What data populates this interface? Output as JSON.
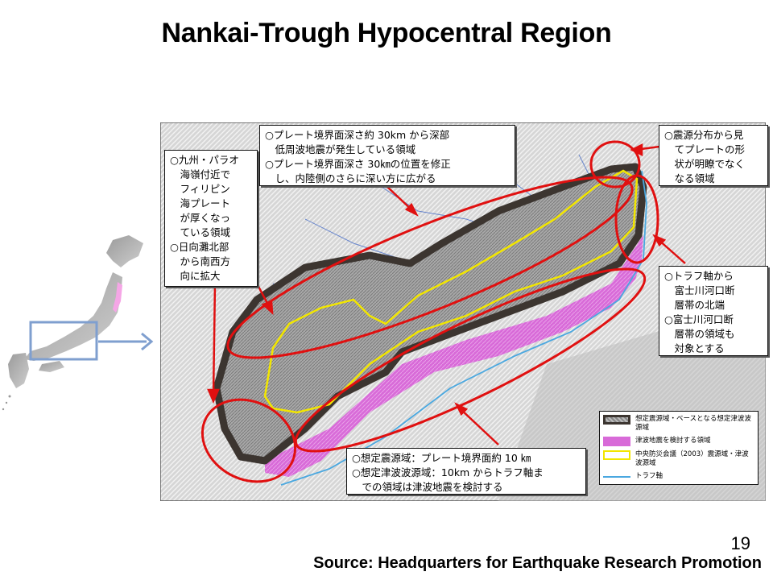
{
  "title": "Nankai-Trough Hypocentral Region",
  "page_number": "19",
  "source": "Source: Headquarters for Earthquake Research Promotion",
  "colors": {
    "outline_region": "#3c3530",
    "tsunami_region": "#d86ad8",
    "cdmc_2003": "#f2e600",
    "trough_axis": "#4aa8e0",
    "annotation_red": "#e01010",
    "inset_highlight": "#f5a6e6",
    "inset_box": "#7f9fcf"
  },
  "callouts": {
    "top_center": [
      "○プレート境界面深さ約 30km から深部",
      "　低周波地震が発生している領域",
      "○プレート境界面深さ 30㎞の位置を修正",
      "　し、内陸側のさらに深い方に広がる"
    ],
    "top_right": [
      "○震源分布から見",
      "　てプレートの形",
      "　状が明瞭でなく",
      "　なる領域"
    ],
    "left": [
      "○九州・パラオ",
      "　海嶺付近で",
      "　フィリピン",
      "　海プレート",
      "　が厚くなっ",
      "　ている領域",
      "○日向灘北部",
      "　から南西方",
      "　向に拡大"
    ],
    "right": [
      "○トラフ軸から",
      "　富士川河口断",
      "　層帯の北端",
      "○富士川河口断",
      "　層帯の領域も",
      "　対象とする"
    ],
    "bottom": [
      "○想定震源域：プレート境界面約 10 ㎞",
      "○想定津波波源域：10km からトラフ軸ま",
      "　での領域は津波地震を検討する"
    ]
  },
  "legend": [
    {
      "swatch": "assumed",
      "label": "想定震源域・ベースとなる想定津波波源域"
    },
    {
      "swatch": "tsunami",
      "label": "津波地震を検討する領域"
    },
    {
      "swatch": "cdmc",
      "label": "中央防災会議（2003）震源域・津波波源域"
    },
    {
      "swatch": "trough",
      "label": "トラフ軸"
    }
  ]
}
